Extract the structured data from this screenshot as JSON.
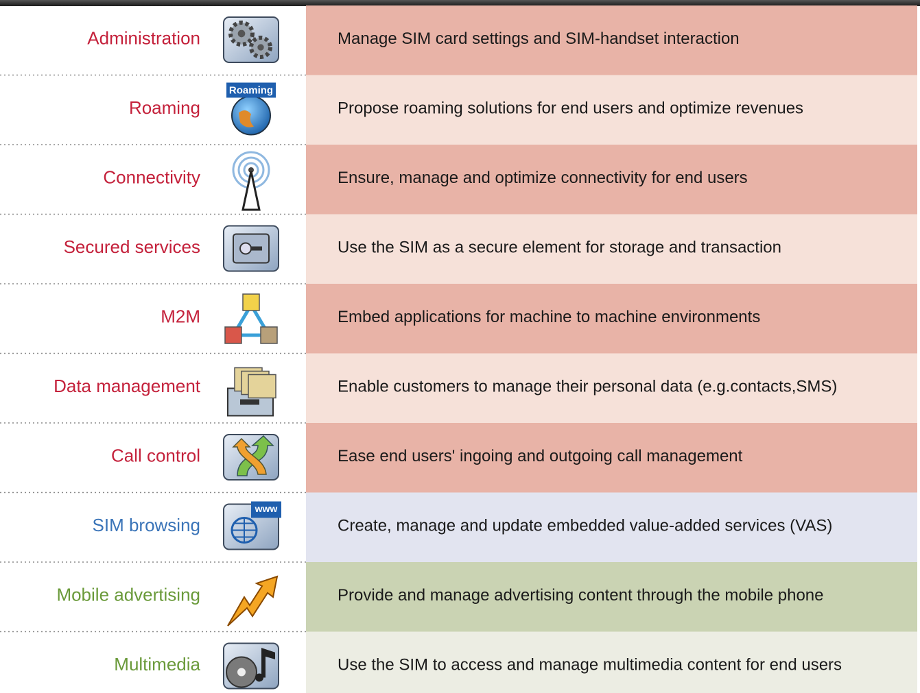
{
  "rows": [
    {
      "label": "Administration",
      "label_color": "#c4213b",
      "description": "Manage SIM card settings and SIM-handset interaction",
      "background": "#e8b3a7"
    },
    {
      "label": "Roaming",
      "label_color": "#c4213b",
      "icon_text": "Roaming",
      "description": "Propose roaming solutions for end users and optimize revenues",
      "background": "#f6e1d9"
    },
    {
      "label": "Connectivity",
      "label_color": "#c4213b",
      "description": "Ensure, manage and optimize connectivity for end users",
      "background": "#e8b3a7"
    },
    {
      "label": "Secured services",
      "label_color": "#c4213b",
      "description": "Use the SIM as a secure element for storage and transaction",
      "background": "#f6e1d9"
    },
    {
      "label": "M2M",
      "label_color": "#c4213b",
      "description": "Embed applications for machine to machine environments",
      "background": "#e8b3a7"
    },
    {
      "label": "Data management",
      "label_color": "#c4213b",
      "description": "Enable customers to manage their personal data (e.g.contacts,SMS)",
      "background": "#f6e1d9"
    },
    {
      "label": "Call control",
      "label_color": "#c4213b",
      "description": "Ease end users' ingoing and outgoing call management",
      "background": "#e8b3a7"
    },
    {
      "label": "SIM browsing",
      "label_color": "#3a74b8",
      "icon_text": "www",
      "description": "Create, manage and update embedded value-added services (VAS)",
      "background": "#e2e4f0"
    },
    {
      "label": "Mobile advertising",
      "label_color": "#6a9a3a",
      "description": "Provide and manage advertising content through the mobile phone",
      "background": "#cad3b3"
    },
    {
      "label": "Multimedia",
      "label_color": "#6a9a3a",
      "description": "Use the SIM to access and manage multimedia content for end users",
      "background": "#ecede3"
    }
  ]
}
